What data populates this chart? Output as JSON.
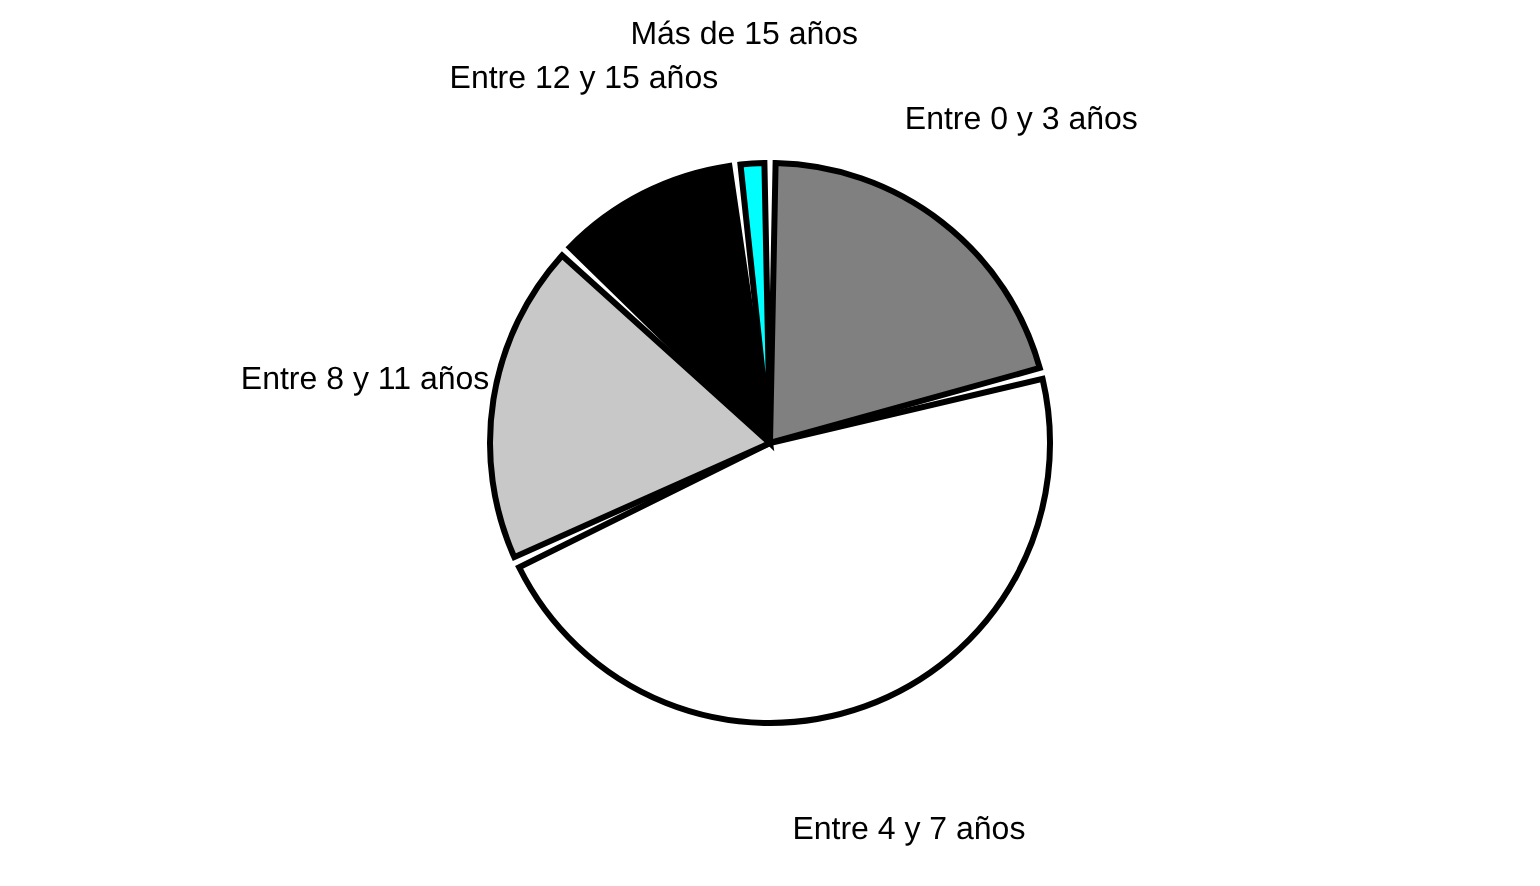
{
  "chart_data": {
    "type": "pie",
    "categories": [
      "Entre 0 y 3 años",
      "Entre 4 y 7 años",
      "Entre 8 y 11 años",
      "Entre 12 y 15 años",
      "Más de 15 años"
    ],
    "values": [
      21,
      47,
      19,
      11,
      2
    ],
    "colors": [
      "#808080",
      "#ffffff",
      "#c8c8c8",
      "#000000",
      "#00ffff"
    ],
    "legend": false
  }
}
